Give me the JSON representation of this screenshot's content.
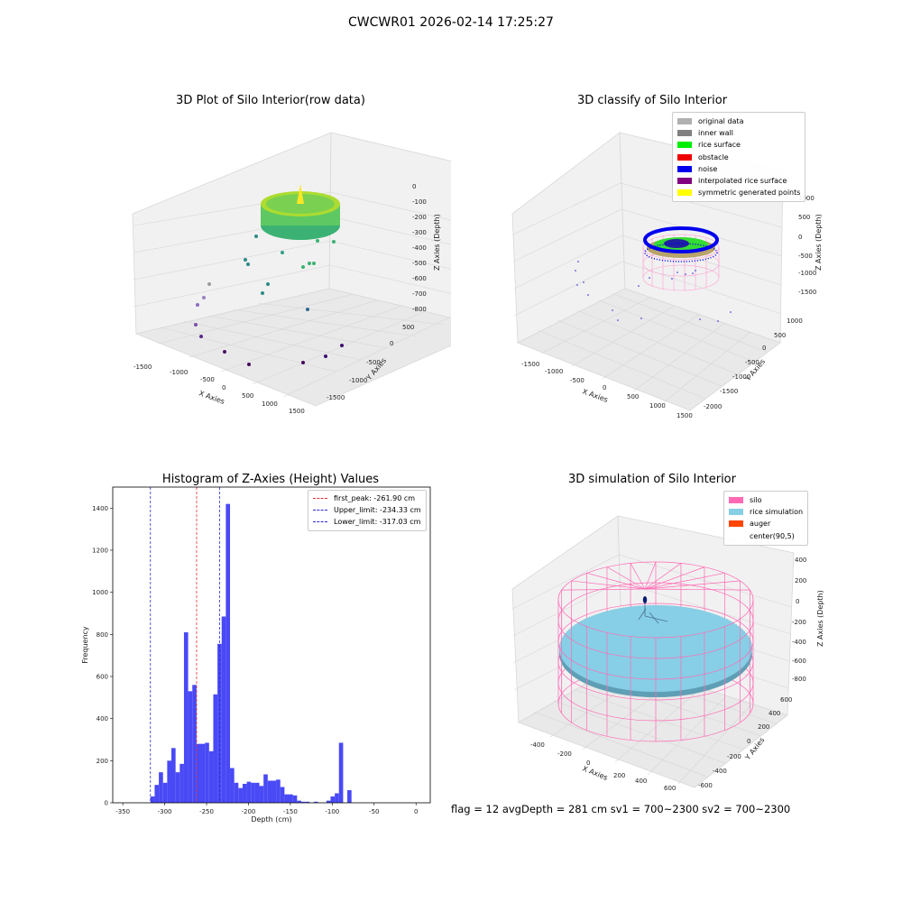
{
  "suptitle": "CWCWR01 2026-02-14 17:25:27",
  "status_text": "flag = 12   avgDepth = 281 cm   sv1 = 700~2300   sv2 = 700~2300",
  "colors": {
    "hist_bar": "#4949f5",
    "first_peak": "#e03030",
    "limit": "#2a2ad0",
    "silo_wire": "#ff69b4",
    "rice_sim": "#87cfe6",
    "auger": "#ff4500"
  },
  "chart_data": [
    {
      "type": "scatter3d",
      "title": "3D Plot of Silo Interior(row data)",
      "xlabel": "X Axies",
      "ylabel": "Y Axies",
      "zlabel": "Z Axies (Depth)",
      "xticks": [
        "-1500",
        "-1000",
        "-500",
        "0",
        "500",
        "1000",
        "1500"
      ],
      "yticks": [
        "-1500",
        "-1000",
        "-500",
        "0",
        "500"
      ],
      "zticks": [
        "0",
        "-100",
        "-200",
        "-300",
        "-400",
        "-500",
        "-600",
        "-700",
        "-800"
      ],
      "colormap": "viridis"
    },
    {
      "type": "scatter3d",
      "title": "3D classify of Silo Interior",
      "xlabel": "X Axies",
      "ylabel": "Y Axies",
      "zlabel": "Z Axies (Depth)",
      "xticks": [
        "-1500",
        "-1000",
        "-500",
        "0",
        "500",
        "1000",
        "1500"
      ],
      "yticks": [
        "-2000",
        "-1500",
        "-1000",
        "-500",
        "0",
        "500",
        "1000"
      ],
      "zticks": [
        "1000",
        "500",
        "0",
        "-500",
        "-1000",
        "-1500"
      ],
      "legend": [
        {
          "label": "original data",
          "color": "#b0b0b0"
        },
        {
          "label": "inner wall",
          "color": "#808080"
        },
        {
          "label": "rice surface",
          "color": "#00ee00"
        },
        {
          "label": "obstacle",
          "color": "#ee0000"
        },
        {
          "label": "noise",
          "color": "#0000ee"
        },
        {
          "label": "interpolated rice surface",
          "color": "#800080"
        },
        {
          "label": "symmetric generated points",
          "color": "#ffff00"
        }
      ]
    },
    {
      "type": "bar",
      "title": "Histogram of Z-Axies (Height) Values",
      "xlabel": "Depth (cm)",
      "ylabel": "Frequency",
      "xlim": [
        -362,
        17
      ],
      "ylim": [
        0,
        1500
      ],
      "xticks": [
        -350,
        -300,
        -250,
        -200,
        -150,
        -100,
        -50,
        0
      ],
      "yticks": [
        0,
        200,
        400,
        600,
        800,
        1000,
        1200,
        1400
      ],
      "bin_width": 5,
      "bin_lefts": [
        -317,
        -312,
        -307,
        -302,
        -297,
        -292,
        -287,
        -282,
        -277,
        -272,
        -267,
        -262,
        -257,
        -252,
        -247,
        -242,
        -237,
        -232,
        -227,
        -222,
        -217,
        -212,
        -207,
        -202,
        -197,
        -192,
        -187,
        -182,
        -177,
        -172,
        -167,
        -162,
        -157,
        -152,
        -147,
        -142,
        -137,
        -132,
        -127,
        -122,
        -117,
        -112,
        -107,
        -102,
        -97,
        -92,
        -87,
        -82,
        -77,
        -72,
        -67,
        -62,
        -57,
        -52,
        -47,
        -42,
        -37,
        -32,
        -27,
        -22,
        -17,
        -12,
        -7,
        -2
      ],
      "values": [
        30,
        85,
        145,
        95,
        200,
        260,
        145,
        185,
        810,
        530,
        560,
        280,
        280,
        285,
        245,
        515,
        755,
        885,
        1420,
        165,
        95,
        70,
        90,
        100,
        95,
        95,
        80,
        135,
        105,
        105,
        110,
        75,
        40,
        40,
        35,
        10,
        5,
        5,
        0,
        5,
        0,
        0,
        10,
        30,
        45,
        285,
        0,
        60,
        0,
        0,
        0,
        0,
        0,
        0,
        0,
        0,
        0,
        0,
        0,
        0,
        0,
        0,
        0,
        0
      ],
      "vlines": [
        {
          "label": "first_peak: -261.90 cm",
          "x": -261.9,
          "color": "#e03030"
        },
        {
          "label": "Upper_limit: -234.33 cm",
          "x": -234.33,
          "color": "#2a2ad0"
        },
        {
          "label": "Lower_limit: -317.03 cm",
          "x": -317.03,
          "color": "#2a2ad0"
        }
      ]
    },
    {
      "type": "surface3d",
      "title": "3D simulation of Silo Interior",
      "xlabel": "X Axies",
      "ylabel": "Y Axies",
      "zlabel": "Z Axies (Depth)",
      "xticks": [
        "-400",
        "-200",
        "0",
        "200",
        "400",
        "600"
      ],
      "yticks": [
        "-600",
        "-400",
        "-200",
        "0",
        "200",
        "400",
        "600"
      ],
      "zticks": [
        "400",
        "200",
        "0",
        "-200",
        "-400",
        "-600",
        "-800"
      ],
      "legend": [
        {
          "label": "silo",
          "color": "#ff69b4"
        },
        {
          "label": "rice simulation",
          "color": "#87cfe6"
        },
        {
          "label": "auger",
          "color": "#ff4500"
        },
        {
          "label": "center(90,5)",
          "color": ""
        }
      ]
    }
  ]
}
